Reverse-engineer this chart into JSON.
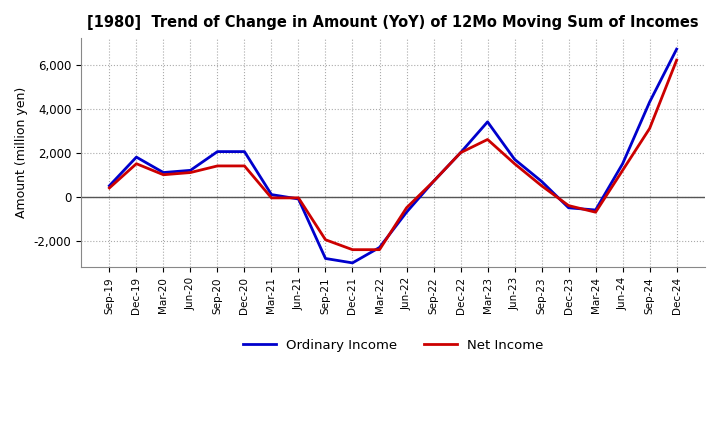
{
  "title": "[1980]  Trend of Change in Amount (YoY) of 12Mo Moving Sum of Incomes",
  "ylabel": "Amount (million yen)",
  "ylim": [
    -3200,
    7200
  ],
  "yticks": [
    -2000,
    0,
    2000,
    4000,
    6000
  ],
  "background_color": "#ffffff",
  "plot_bg_color": "#ffffff",
  "grid_color": "#aaaaaa",
  "line_ordinary_color": "#0000cc",
  "line_net_color": "#cc0000",
  "x_labels": [
    "Sep-19",
    "Dec-19",
    "Mar-20",
    "Jun-20",
    "Sep-20",
    "Dec-20",
    "Mar-21",
    "Jun-21",
    "Sep-21",
    "Dec-21",
    "Mar-22",
    "Jun-22",
    "Sep-22",
    "Dec-22",
    "Mar-23",
    "Jun-23",
    "Sep-23",
    "Dec-23",
    "Mar-24",
    "Jun-24",
    "Sep-24",
    "Dec-24"
  ],
  "ordinary_income": [
    500,
    1800,
    1100,
    1200,
    2050,
    2050,
    100,
    -100,
    -2800,
    -3000,
    -2300,
    -700,
    700,
    2000,
    3400,
    1700,
    700,
    -500,
    -600,
    1500,
    4300,
    6700
  ],
  "net_income": [
    400,
    1500,
    1000,
    1100,
    1400,
    1400,
    -50,
    -50,
    -1950,
    -2400,
    -2400,
    -500,
    700,
    2000,
    2600,
    1500,
    500,
    -400,
    -700,
    1200,
    3100,
    6200
  ],
  "linewidth": 2.0
}
